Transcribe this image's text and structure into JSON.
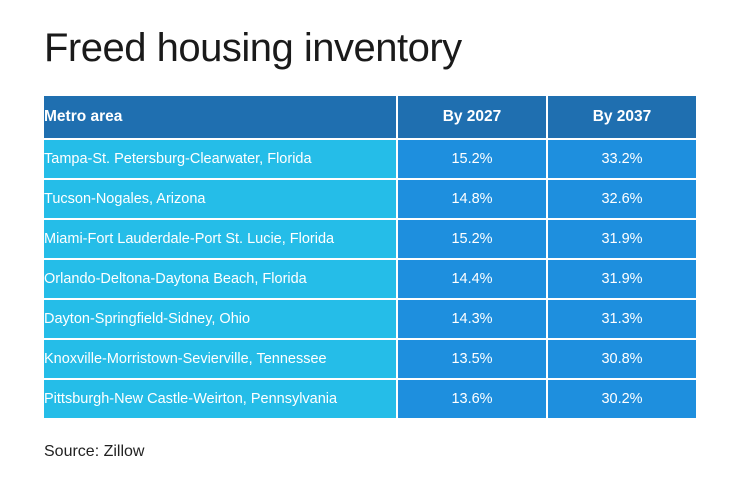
{
  "title": "Freed housing inventory",
  "source": "Source: Zillow",
  "colors": {
    "header": "#1f6fb0",
    "metro_cell": "#25bde8",
    "value_cell": "#1e8fde"
  },
  "chart_data": {
    "type": "table",
    "title": "Freed housing inventory",
    "columns": [
      "Metro area",
      "By 2027",
      "By 2037"
    ],
    "rows": [
      [
        "Tampa-St. Petersburg-Clearwater, Florida",
        "15.2%",
        "33.2%"
      ],
      [
        "Tucson-Nogales, Arizona",
        "14.8%",
        "32.6%"
      ],
      [
        "Miami-Fort Lauderdale-Port St. Lucie, Florida",
        "15.2%",
        "31.9%"
      ],
      [
        "Orlando-Deltona-Daytona Beach, Florida",
        "14.4%",
        "31.9%"
      ],
      [
        "Dayton-Springfield-Sidney, Ohio",
        "14.3%",
        "31.3%"
      ],
      [
        "Knoxville-Morristown-Sevierville, Tennessee",
        "13.5%",
        "30.8%"
      ],
      [
        "Pittsburgh-New Castle-Weirton, Pennsylvania",
        "13.6%",
        "30.2%"
      ]
    ]
  }
}
